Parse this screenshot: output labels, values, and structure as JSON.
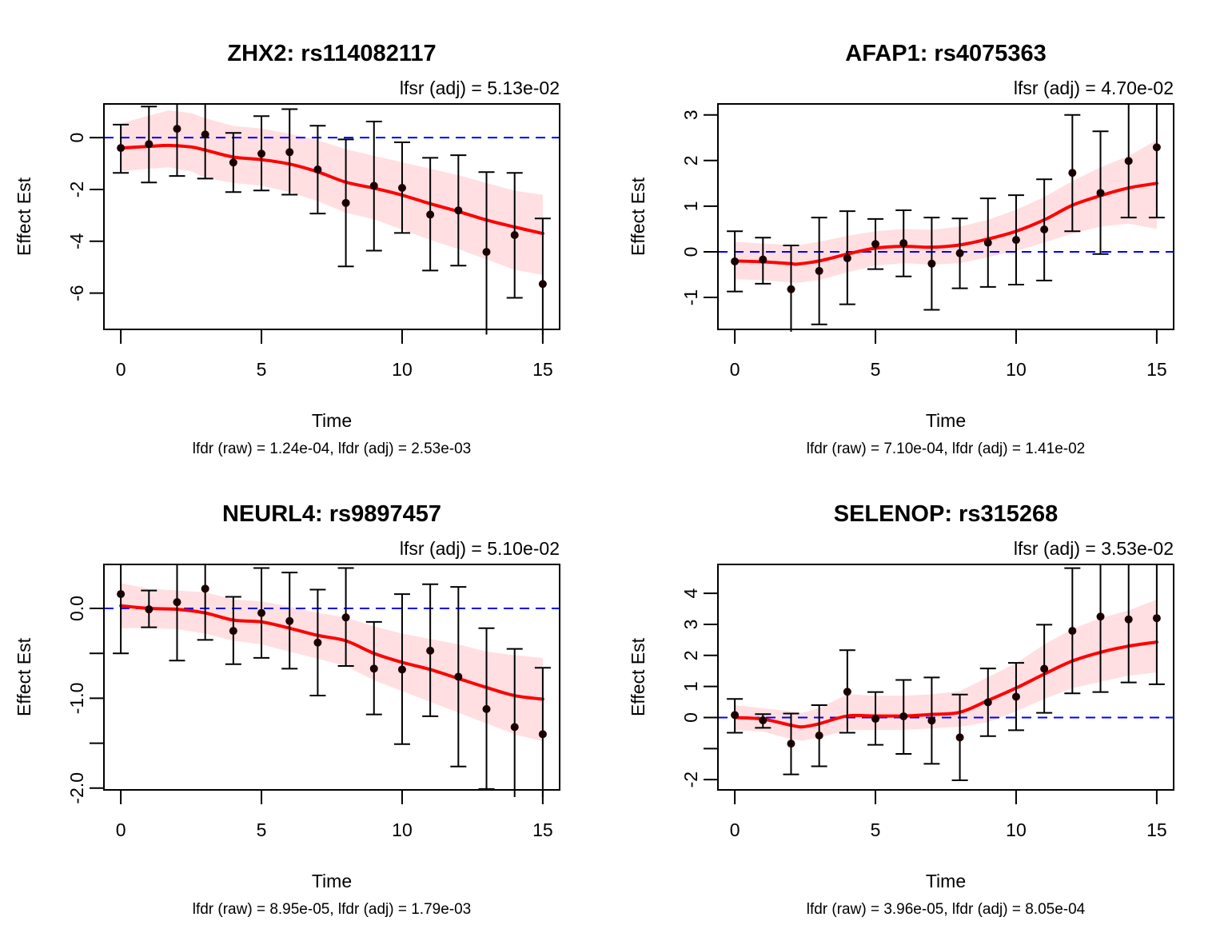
{
  "chart_data": [
    {
      "type": "line",
      "title": "ZHX2: rs114082117",
      "annotation": "lfsr (adj) = 5.13e-02",
      "xlabel": "Time",
      "ylabel": "Effect Est",
      "subtitle": "lfdr (raw) = 1.24e-04, lfdr (adj) = 2.53e-03",
      "xlim": [
        -0.6,
        15.6
      ],
      "ylim": [
        -7.4,
        1.3
      ],
      "xticks": [
        0,
        5,
        10,
        15
      ],
      "yticks": [
        0,
        -2,
        -4,
        -6
      ],
      "ytick_labels": [
        "0",
        "-2",
        "-4",
        "-6"
      ],
      "reference_line": 0,
      "x": [
        0,
        1,
        2,
        3,
        4,
        5,
        6,
        7,
        8,
        9,
        10,
        11,
        12,
        13,
        14,
        15
      ],
      "estimate": [
        -0.4,
        -0.25,
        0.34,
        0.12,
        -0.96,
        -0.62,
        -0.56,
        -1.23,
        -2.52,
        -1.86,
        -1.94,
        -2.97,
        -2.81,
        -4.41,
        -3.76,
        -5.65
      ],
      "ci_upper": [
        0.5,
        1.2,
        1.4,
        1.4,
        0.18,
        0.83,
        1.1,
        0.46,
        -0.07,
        0.62,
        -0.18,
        -0.78,
        -0.68,
        -1.33,
        -1.36,
        -3.12
      ],
      "ci_lower": [
        -1.36,
        -1.73,
        -1.48,
        -1.58,
        -2.1,
        -2.04,
        -2.2,
        -2.93,
        -4.97,
        -4.36,
        -3.68,
        -5.13,
        -4.94,
        -7.6,
        -6.18,
        -7.6
      ],
      "smooth_x": [
        0,
        1,
        1.7,
        2.5,
        3,
        4,
        5,
        6,
        7,
        8,
        9,
        10,
        11,
        12,
        13,
        14,
        15
      ],
      "smooth": [
        -0.4,
        -0.34,
        -0.3,
        -0.36,
        -0.48,
        -0.75,
        -0.85,
        -1.02,
        -1.32,
        -1.72,
        -1.95,
        -2.22,
        -2.55,
        -2.85,
        -3.18,
        -3.45,
        -3.7
      ],
      "band_upper": [
        0.55,
        0.85,
        1.05,
        0.95,
        0.75,
        0.45,
        0.35,
        0.15,
        -0.1,
        -0.45,
        -0.7,
        -0.95,
        -1.2,
        -1.45,
        -1.75,
        -2.05,
        -2.2
      ],
      "band_lower": [
        -1.3,
        -1.2,
        -1.15,
        -1.3,
        -1.55,
        -1.75,
        -1.85,
        -2.1,
        -2.45,
        -2.9,
        -3.15,
        -3.55,
        -3.95,
        -4.3,
        -4.7,
        -5.1,
        -5.3
      ]
    },
    {
      "type": "line",
      "title": "AFAP1: rs4075363",
      "annotation": "lfsr (adj) = 4.70e-02",
      "xlabel": "Time",
      "ylabel": "Effect Est",
      "subtitle": "lfdr (raw) = 7.10e-04, lfdr (adj) = 1.41e-02",
      "xlim": [
        -0.6,
        15.6
      ],
      "ylim": [
        -1.7,
        3.24
      ],
      "xticks": [
        0,
        5,
        10,
        15
      ],
      "yticks": [
        3,
        2,
        1,
        0,
        -1
      ],
      "ytick_labels": [
        "3",
        "2",
        "1",
        "0",
        "-1"
      ],
      "reference_line": 0,
      "x": [
        0,
        1,
        2,
        3,
        4,
        5,
        6,
        7,
        8,
        9,
        10,
        11,
        12,
        13,
        14,
        15
      ],
      "estimate": [
        -0.21,
        -0.17,
        -0.82,
        -0.42,
        -0.14,
        0.17,
        0.19,
        -0.26,
        -0.03,
        0.2,
        0.26,
        0.49,
        1.73,
        1.29,
        1.99,
        2.29
      ],
      "ci_upper": [
        0.45,
        0.31,
        0.14,
        0.75,
        0.89,
        0.72,
        0.91,
        0.75,
        0.73,
        1.17,
        1.24,
        1.59,
        3.0,
        2.64,
        3.3,
        3.3
      ],
      "ci_lower": [
        -0.87,
        -0.7,
        -1.75,
        -1.59,
        -1.15,
        -0.38,
        -0.54,
        -1.27,
        -0.8,
        -0.77,
        -0.72,
        -0.63,
        0.45,
        -0.05,
        0.75,
        0.75
      ],
      "smooth_x": [
        0,
        1,
        2,
        2.2,
        3,
        4,
        5,
        6,
        7,
        8,
        9,
        10,
        11,
        12,
        13,
        14,
        15
      ],
      "smooth": [
        -0.2,
        -0.22,
        -0.26,
        -0.27,
        -0.2,
        -0.05,
        0.08,
        0.12,
        0.1,
        0.15,
        0.28,
        0.45,
        0.7,
        1.02,
        1.23,
        1.4,
        1.5
      ],
      "band_upper": [
        0.22,
        0.18,
        0.15,
        0.14,
        0.22,
        0.35,
        0.45,
        0.5,
        0.48,
        0.55,
        0.7,
        0.92,
        1.2,
        1.55,
        1.85,
        2.1,
        2.45
      ],
      "band_lower": [
        -0.6,
        -0.62,
        -0.67,
        -0.68,
        -0.62,
        -0.45,
        -0.3,
        -0.25,
        -0.28,
        -0.25,
        -0.12,
        0.02,
        0.2,
        0.4,
        0.55,
        0.62,
        0.5
      ]
    },
    {
      "type": "line",
      "title": "NEURL4: rs9897457",
      "annotation": "lfsr (adj) = 5.10e-02",
      "xlabel": "Time",
      "ylabel": "Effect Est",
      "subtitle": "lfdr (raw) = 8.95e-05, lfdr (adj) = 1.79e-03",
      "xlim": [
        -0.6,
        15.6
      ],
      "ylim": [
        -2.02,
        0.49
      ],
      "xticks": [
        0,
        5,
        10,
        15
      ],
      "yticks": [
        0.0,
        -0.5,
        -1.0,
        -1.5,
        -2.0
      ],
      "ytick_labels": [
        "0.0",
        "",
        "-1.0",
        "",
        "-2.0"
      ],
      "reference_line": 0,
      "x": [
        0,
        1,
        2,
        3,
        4,
        5,
        6,
        7,
        8,
        9,
        10,
        11,
        12,
        13,
        14,
        15
      ],
      "estimate": [
        0.16,
        -0.01,
        0.07,
        0.22,
        -0.25,
        -0.05,
        -0.14,
        -0.38,
        -0.1,
        -0.67,
        -0.68,
        -0.47,
        -0.76,
        -1.12,
        -1.32,
        -1.4
      ],
      "ci_upper": [
        0.55,
        0.2,
        0.55,
        0.55,
        0.13,
        0.45,
        0.4,
        0.21,
        0.45,
        -0.15,
        0.16,
        0.27,
        0.24,
        -0.22,
        -0.45,
        -0.66
      ],
      "ci_lower": [
        -0.5,
        -0.21,
        -0.58,
        -0.35,
        -0.62,
        -0.55,
        -0.67,
        -0.97,
        -0.64,
        -1.18,
        -1.51,
        -1.2,
        -1.76,
        -2.01,
        -2.1,
        -2.1
      ],
      "smooth_x": [
        0,
        1,
        2,
        3,
        4,
        5,
        6,
        7,
        8,
        9,
        10,
        11,
        12,
        13,
        14,
        15
      ],
      "smooth": [
        0.03,
        0.0,
        -0.01,
        -0.05,
        -0.13,
        -0.15,
        -0.22,
        -0.3,
        -0.36,
        -0.5,
        -0.6,
        -0.68,
        -0.78,
        -0.88,
        -0.97,
        -1.01
      ],
      "band_upper": [
        0.28,
        0.22,
        0.2,
        0.18,
        0.1,
        0.08,
        0.02,
        -0.05,
        -0.1,
        -0.2,
        -0.28,
        -0.34,
        -0.4,
        -0.48,
        -0.52,
        -0.55
      ],
      "band_lower": [
        -0.22,
        -0.22,
        -0.23,
        -0.28,
        -0.36,
        -0.4,
        -0.48,
        -0.56,
        -0.64,
        -0.8,
        -0.92,
        -1.04,
        -1.16,
        -1.28,
        -1.4,
        -1.48
      ]
    },
    {
      "type": "line",
      "title": "SELENOP: rs315268",
      "annotation": "lfsr (adj) = 3.53e-02",
      "xlabel": "Time",
      "ylabel": "Effect Est",
      "subtitle": "lfdr (raw) = 3.96e-05, lfdr (adj) = 8.05e-04",
      "xlim": [
        -0.6,
        15.6
      ],
      "ylim": [
        -2.33,
        4.93
      ],
      "xticks": [
        0,
        5,
        10,
        15
      ],
      "yticks": [
        4,
        3,
        2,
        1,
        0,
        -1,
        -2
      ],
      "ytick_labels": [
        "4",
        "3",
        "2",
        "1",
        "0",
        "",
        "-2"
      ],
      "reference_line": 0,
      "x": [
        0,
        1,
        2,
        3,
        4,
        5,
        6,
        7,
        8,
        9,
        10,
        11,
        12,
        13,
        14,
        15
      ],
      "estimate": [
        0.08,
        -0.09,
        -0.84,
        -0.58,
        0.83,
        -0.04,
        0.04,
        -0.1,
        -0.64,
        0.49,
        0.67,
        1.57,
        2.79,
        3.25,
        3.16,
        3.2
      ],
      "ci_upper": [
        0.6,
        0.11,
        0.13,
        0.4,
        2.17,
        0.82,
        1.21,
        1.29,
        0.74,
        1.58,
        1.76,
        2.99,
        4.81,
        5.0,
        5.0,
        5.0
      ],
      "ci_lower": [
        -0.49,
        -0.33,
        -1.83,
        -1.57,
        -0.49,
        -0.88,
        -1.17,
        -1.49,
        -2.02,
        -0.6,
        -0.41,
        0.15,
        0.78,
        0.82,
        1.13,
        1.07
      ],
      "smooth_x": [
        0,
        1,
        2,
        2.4,
        3,
        4,
        5,
        6,
        7,
        8,
        9,
        10,
        11,
        12,
        13,
        14,
        15
      ],
      "smooth": [
        0.0,
        -0.05,
        -0.25,
        -0.3,
        -0.2,
        0.05,
        0.05,
        0.05,
        0.1,
        0.17,
        0.55,
        0.95,
        1.4,
        1.82,
        2.1,
        2.3,
        2.43
      ],
      "band_upper": [
        0.4,
        0.3,
        0.2,
        0.15,
        0.3,
        0.75,
        0.7,
        0.7,
        0.75,
        0.85,
        1.3,
        1.75,
        2.35,
        2.85,
        3.2,
        3.45,
        3.8
      ],
      "band_lower": [
        -0.4,
        -0.45,
        -0.7,
        -0.75,
        -0.65,
        -0.4,
        -0.4,
        -0.4,
        -0.35,
        -0.3,
        -0.15,
        0.2,
        0.6,
        0.95,
        1.15,
        1.35,
        1.45
      ]
    }
  ],
  "colors": {
    "smooth": "#ff0000",
    "band": "#ffdfe2",
    "reference": "#0000ff",
    "points": "#1a0000",
    "axes": "#000000"
  }
}
